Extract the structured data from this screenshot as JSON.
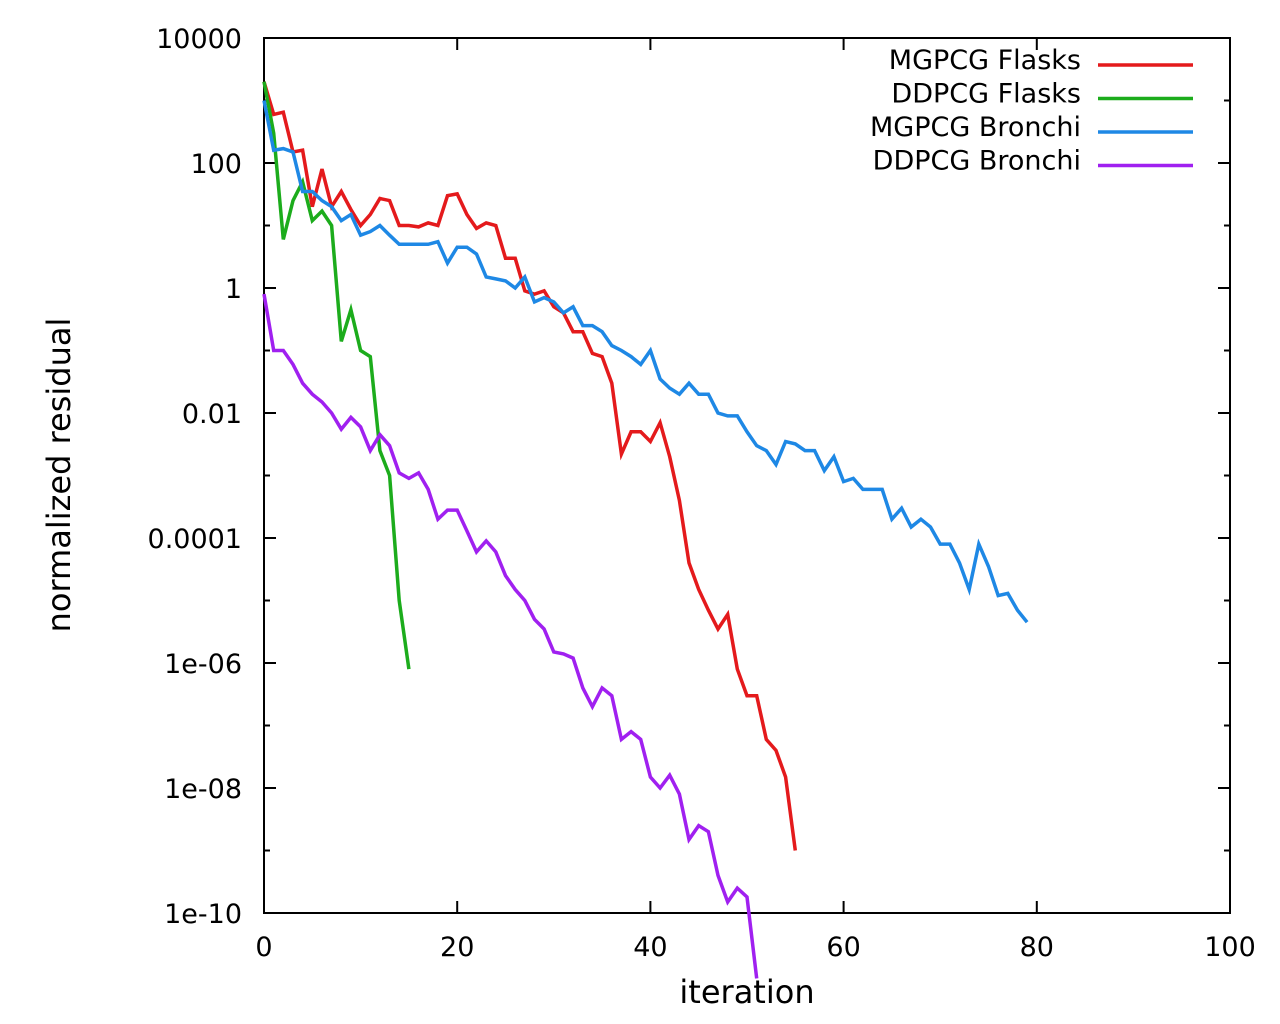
{
  "chart_data": {
    "type": "line",
    "title": "",
    "xlabel": "iteration",
    "ylabel": "normalized residual",
    "xlim": [
      0,
      100
    ],
    "ylim": [
      1e-10,
      10000
    ],
    "yscale": "log",
    "grid": false,
    "legend_position": "top-right",
    "x_ticks": [
      0,
      20,
      40,
      60,
      80,
      100
    ],
    "x_tick_labels": [
      "0",
      "20",
      "40",
      "60",
      "80",
      "100"
    ],
    "y_ticks": [
      1e-10,
      1e-08,
      1e-06,
      0.0001,
      0.01,
      1,
      100,
      10000
    ],
    "y_tick_labels": [
      "1e-10",
      "1e-08",
      "1e-06",
      "0.0001",
      "0.01",
      "1",
      "100",
      "10000"
    ],
    "series": [
      {
        "name": "MGPCG Flasks",
        "color": "#e41a1c",
        "x": [
          0,
          1,
          2,
          3,
          4,
          5,
          6,
          7,
          8,
          9,
          10,
          11,
          12,
          13,
          14,
          15,
          16,
          17,
          18,
          19,
          20,
          21,
          22,
          23,
          24,
          25,
          26,
          27,
          28,
          29,
          30,
          31,
          32,
          33,
          34,
          35,
          36,
          37,
          38,
          39,
          40,
          41,
          42,
          43,
          44,
          45,
          46,
          47,
          48,
          49,
          50,
          51,
          52,
          53,
          54,
          55
        ],
        "y": [
          2000,
          600,
          650,
          150,
          160,
          20,
          80,
          20,
          35,
          18,
          10,
          15,
          27,
          25,
          10,
          10,
          9.5,
          11,
          10,
          30,
          32,
          15,
          9,
          11,
          10,
          3,
          3,
          0.9,
          0.8,
          0.9,
          0.5,
          0.4,
          0.2,
          0.2,
          0.09,
          0.08,
          0.03,
          0.0022,
          0.005,
          0.005,
          0.0035,
          0.007,
          0.002,
          0.0004,
          4e-05,
          1.5e-05,
          7e-06,
          3.5e-06,
          6e-06,
          8e-07,
          3e-07,
          3e-07,
          6e-08,
          4e-08,
          1.5e-08,
          1e-09
        ]
      },
      {
        "name": "DDPCG Flasks",
        "color": "#1cac1c",
        "x": [
          0,
          1,
          2,
          3,
          4,
          5,
          6,
          7,
          8,
          9,
          10,
          11,
          12,
          13,
          14,
          15
        ],
        "y": [
          2000,
          300,
          6,
          25,
          50,
          12,
          17,
          10,
          0.14,
          0.45,
          0.1,
          0.08,
          0.0025,
          0.001,
          1e-05,
          8e-07
        ]
      },
      {
        "name": "MGPCG Bronchi",
        "color": "#1e88e5",
        "x": [
          0,
          1,
          2,
          3,
          4,
          5,
          6,
          7,
          8,
          9,
          10,
          11,
          12,
          13,
          14,
          15,
          16,
          17,
          18,
          19,
          20,
          21,
          22,
          23,
          24,
          25,
          26,
          27,
          28,
          29,
          30,
          31,
          32,
          33,
          34,
          35,
          36,
          37,
          38,
          39,
          40,
          41,
          42,
          43,
          44,
          45,
          46,
          47,
          48,
          49,
          50,
          51,
          52,
          53,
          54,
          55,
          56,
          57,
          58,
          59,
          60,
          61,
          62,
          63,
          64,
          65,
          66,
          67,
          68,
          69,
          70,
          71,
          72,
          73,
          74,
          75,
          76,
          77,
          78,
          79
        ],
        "y": [
          1000,
          160,
          170,
          150,
          35,
          35,
          25,
          20,
          12,
          15,
          7,
          8,
          10,
          7,
          5,
          5,
          5,
          5,
          5.5,
          2.5,
          4.5,
          4.5,
          3.5,
          1.5,
          1.4,
          1.3,
          1,
          1.5,
          0.6,
          0.7,
          0.6,
          0.4,
          0.5,
          0.25,
          0.25,
          0.2,
          0.12,
          0.1,
          0.08,
          0.06,
          0.1,
          0.035,
          0.025,
          0.02,
          0.03,
          0.02,
          0.02,
          0.01,
          0.009,
          0.009,
          0.005,
          0.003,
          0.0025,
          0.0015,
          0.0035,
          0.0032,
          0.0025,
          0.0025,
          0.0012,
          0.002,
          0.0008,
          0.0009,
          0.0006,
          0.0006,
          0.0006,
          0.0002,
          0.0003,
          0.00015,
          0.0002,
          0.00015,
          8e-05,
          8e-05,
          4e-05,
          1.5e-05,
          8e-05,
          3.5e-05,
          1.2e-05,
          1.3e-05,
          7e-06,
          4.5e-06
        ]
      },
      {
        "name": "DDPCG Bronchi",
        "color": "#a020f0",
        "x": [
          0,
          1,
          2,
          3,
          4,
          5,
          6,
          7,
          8,
          9,
          10,
          11,
          12,
          13,
          14,
          15,
          16,
          17,
          18,
          19,
          20,
          21,
          22,
          23,
          24,
          25,
          26,
          27,
          28,
          29,
          30,
          31,
          32,
          33,
          34,
          35,
          36,
          37,
          38,
          39,
          40,
          41,
          42,
          43,
          44,
          45,
          46,
          47,
          48,
          49,
          50,
          51
        ],
        "y": [
          0.8,
          0.1,
          0.1,
          0.06,
          0.03,
          0.02,
          0.015,
          0.01,
          0.0055,
          0.0085,
          0.006,
          0.0025,
          0.0045,
          0.003,
          0.0011,
          0.0009,
          0.0011,
          0.0006,
          0.0002,
          0.00028,
          0.00028,
          0.00013,
          6e-05,
          9e-05,
          6e-05,
          2.5e-05,
          1.5e-05,
          1e-05,
          5e-06,
          3.5e-06,
          1.5e-06,
          1.4e-06,
          1.2e-06,
          4e-07,
          2e-07,
          4e-07,
          3e-07,
          6e-08,
          8e-08,
          6e-08,
          1.5e-08,
          1e-08,
          1.6e-08,
          8e-09,
          1.5e-09,
          2.5e-09,
          2e-09,
          4e-10,
          1.5e-10,
          2.5e-10,
          1.8e-10,
          9e-12
        ]
      }
    ]
  }
}
